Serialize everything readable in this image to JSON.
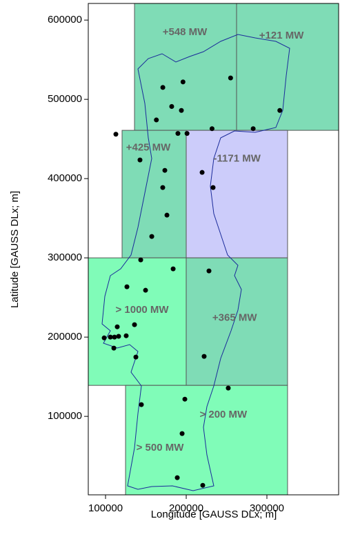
{
  "chart_data": {
    "type": "scatter",
    "x_label": "Longitude [GAUSS DLx; m]",
    "y_label": "Latitude [GAUSS DLx; m]",
    "xlim": [
      78600,
      388900
    ],
    "ylim": [
      1000,
      621000
    ],
    "xticks": [
      100000,
      200000,
      300000
    ],
    "yticks": [
      100000,
      200000,
      300000,
      400000,
      500000,
      600000
    ],
    "regions": [
      {
        "x": [
          135900,
          262400
        ],
        "y": [
          460900,
          621000
        ],
        "color": "#7fdcb6"
      },
      {
        "x": [
          262400,
          388900
        ],
        "y": [
          460900,
          621000
        ],
        "color": "#7fdcb6"
      },
      {
        "x": [
          120500,
          200000
        ],
        "y": [
          300000,
          460900
        ],
        "color": "#7fdcb6"
      },
      {
        "x": [
          200000,
          325600
        ],
        "y": [
          300000,
          460900
        ],
        "color": "#ccccfa"
      },
      {
        "x": [
          78600,
          200000
        ],
        "y": [
          139100,
          300000
        ],
        "color": "#80fcb8"
      },
      {
        "x": [
          200000,
          325600
        ],
        "y": [
          139100,
          300000
        ],
        "color": "#7fdcb6"
      },
      {
        "x": [
          124800,
          325600
        ],
        "y": [
          1000,
          139100
        ],
        "color": "#80fcb8"
      }
    ],
    "annotations": [
      {
        "text": "+548 MW",
        "x": 198300,
        "y": 584300
      },
      {
        "text": "+121 MW",
        "x": 318000,
        "y": 580000
      },
      {
        "text": "+425 MW",
        "x": 153000,
        "y": 439000
      },
      {
        "text": "-1171 MW",
        "x": 263000,
        "y": 425000
      },
      {
        "text": "> 1000 MW",
        "x": 145300,
        "y": 234000
      },
      {
        "text": "+365 MW",
        "x": 260000,
        "y": 224000
      },
      {
        "text": "> 200 MW",
        "x": 246000,
        "y": 102000
      },
      {
        "text": "> 500 MW",
        "x": 167500,
        "y": 60000
      }
    ],
    "point_color": "#000000",
    "x": [
      171000,
      196000,
      255000,
      182000,
      194000,
      163000,
      316000,
      201000,
      232000,
      283000,
      112800,
      189700,
      142700,
      173500,
      219700,
      233300,
      170900,
      176100,
      157300,
      143600,
      183800,
      228200,
      126500,
      149600,
      135900,
      114500,
      98300,
      106000,
      111100,
      116200,
      125600,
      110300,
      137600,
      222200,
      252100,
      144400,
      198300,
      194900,
      188900,
      220500
    ],
    "y": [
      515000,
      522000,
      527000,
      491000,
      486000,
      474000,
      486000,
      457000,
      463000,
      463000,
      456000,
      457000,
      423500,
      410400,
      407800,
      388700,
      388700,
      353900,
      327000,
      297400,
      286100,
      283500,
      263500,
      259100,
      215700,
      213000,
      199000,
      200000,
      200000,
      201000,
      201700,
      186100,
      174800,
      175700,
      135700,
      114800,
      121700,
      78300,
      22600,
      13000
    ]
  }
}
